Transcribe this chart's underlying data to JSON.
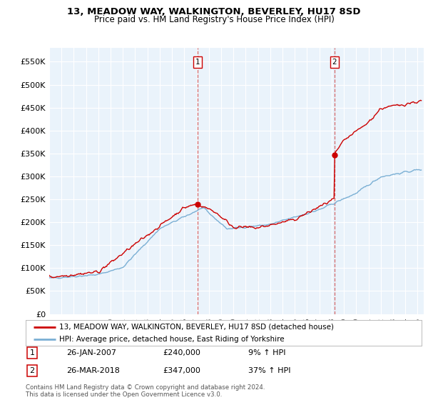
{
  "title": "13, MEADOW WAY, WALKINGTON, BEVERLEY, HU17 8SD",
  "subtitle": "Price paid vs. HM Land Registry's House Price Index (HPI)",
  "ylabel_ticks": [
    "£0",
    "£50K",
    "£100K",
    "£150K",
    "£200K",
    "£250K",
    "£300K",
    "£350K",
    "£400K",
    "£450K",
    "£500K",
    "£550K"
  ],
  "ytick_values": [
    0,
    50000,
    100000,
    150000,
    200000,
    250000,
    300000,
    350000,
    400000,
    450000,
    500000,
    550000
  ],
  "ylim": [
    0,
    580000
  ],
  "xlim_start": 1995.0,
  "xlim_end": 2025.5,
  "sale1_x": 2007.07,
  "sale1_y": 240000,
  "sale1_label": "1",
  "sale1_date": "26-JAN-2007",
  "sale1_price": "£240,000",
  "sale1_hpi": "9% ↑ HPI",
  "sale2_x": 2018.23,
  "sale2_y": 347000,
  "sale2_label": "2",
  "sale2_date": "26-MAR-2018",
  "sale2_price": "£347,000",
  "sale2_hpi": "37% ↑ HPI",
  "line_color_property": "#cc0000",
  "line_color_hpi": "#7aafd4",
  "background_color": "#ffffff",
  "plot_bg_color": "#eaf3fb",
  "grid_color": "#ffffff",
  "legend_label_property": "13, MEADOW WAY, WALKINGTON, BEVERLEY, HU17 8SD (detached house)",
  "legend_label_hpi": "HPI: Average price, detached house, East Riding of Yorkshire",
  "footer": "Contains HM Land Registry data © Crown copyright and database right 2024.\nThis data is licensed under the Open Government Licence v3.0.",
  "xtick_years": [
    1995,
    1996,
    1997,
    1998,
    1999,
    2000,
    2001,
    2002,
    2003,
    2004,
    2005,
    2006,
    2007,
    2008,
    2009,
    2010,
    2011,
    2012,
    2013,
    2014,
    2015,
    2016,
    2017,
    2018,
    2019,
    2020,
    2021,
    2022,
    2023,
    2024,
    2025
  ]
}
